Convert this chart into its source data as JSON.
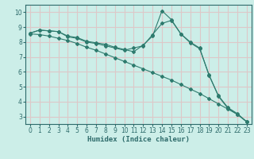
{
  "xlabel": "Humidex (Indice chaleur)",
  "bg_color": "#cceee8",
  "grid_color": "#ddc8c8",
  "line_color": "#2e7b6e",
  "xlim": [
    -0.5,
    23.5
  ],
  "ylim": [
    2.5,
    10.5
  ],
  "xticks": [
    0,
    1,
    2,
    3,
    4,
    5,
    6,
    7,
    8,
    9,
    10,
    11,
    12,
    13,
    14,
    15,
    16,
    17,
    18,
    19,
    20,
    21,
    22,
    23
  ],
  "yticks": [
    3,
    4,
    5,
    6,
    7,
    8,
    9,
    10
  ],
  "line1_x": [
    0,
    1,
    2,
    3,
    4,
    5,
    6,
    7,
    8,
    9,
    10,
    11,
    12,
    13,
    14,
    15,
    16,
    17,
    18,
    19,
    20,
    21,
    22,
    23
  ],
  "line1_y": [
    8.6,
    8.8,
    8.75,
    8.7,
    8.4,
    8.3,
    8.05,
    7.95,
    7.85,
    7.65,
    7.5,
    7.35,
    7.8,
    8.4,
    10.1,
    9.5,
    8.55,
    8.0,
    7.6,
    5.75,
    4.4,
    3.6,
    3.2,
    2.65
  ],
  "line2_x": [
    0,
    1,
    2,
    3,
    4,
    5,
    6,
    7,
    8,
    9,
    10,
    11,
    12,
    13,
    14,
    15,
    16,
    17,
    18,
    19,
    20,
    21,
    22,
    23
  ],
  "line2_y": [
    8.6,
    8.8,
    8.75,
    8.7,
    8.35,
    8.25,
    8.0,
    7.9,
    7.75,
    7.6,
    7.45,
    7.6,
    7.75,
    8.5,
    9.25,
    9.45,
    8.55,
    7.95,
    7.55,
    5.8,
    4.35,
    3.55,
    3.15,
    2.65
  ],
  "line3_x": [
    0,
    1,
    2,
    3,
    4,
    5,
    6,
    7,
    8,
    9,
    10,
    11,
    12,
    13,
    14,
    15,
    16,
    17,
    18,
    19,
    20,
    21,
    22,
    23
  ],
  "line3_y": [
    8.55,
    8.5,
    8.4,
    8.25,
    8.1,
    7.9,
    7.65,
    7.45,
    7.2,
    6.95,
    6.7,
    6.45,
    6.2,
    5.95,
    5.7,
    5.45,
    5.15,
    4.85,
    4.55,
    4.2,
    3.85,
    3.5,
    3.15,
    2.65
  ]
}
